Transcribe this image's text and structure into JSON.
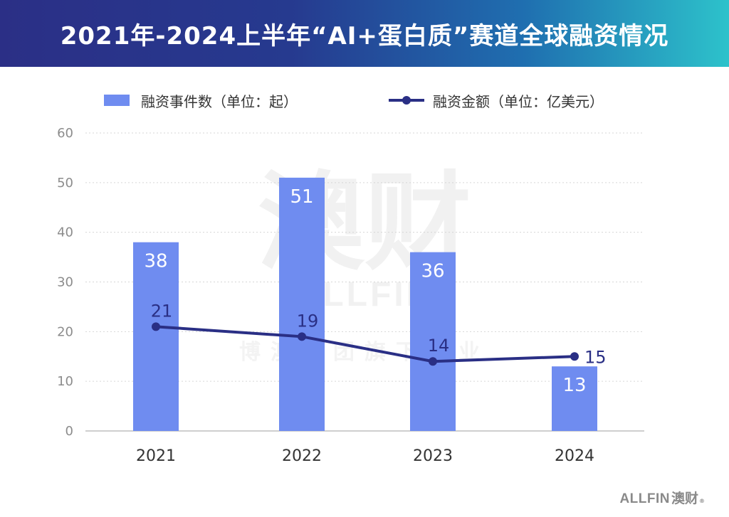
{
  "header": {
    "title": "2021年-2024上半年“AI+蛋白质”赛道全球融资情况"
  },
  "legend": {
    "bar_label": "融资事件数（单位：起）",
    "line_label": "融资金额（单位：亿美元）"
  },
  "watermark": {
    "cn": "澳财",
    "en": "ALLFIN",
    "sub": "博澳集团旗下企业"
  },
  "footer": {
    "logo_en": "ALLFIN",
    "logo_cn": "澳财",
    "logo_mark": "®"
  },
  "colors": {
    "bar": "#6f8cf0",
    "line": "#2a2f85",
    "header_start": "#2b2f86",
    "header_end": "#2dc2cb"
  },
  "chart_data": {
    "type": "bar",
    "categories": [
      "2021",
      "2022",
      "2023",
      "2024"
    ],
    "series": [
      {
        "name": "融资事件数（单位：起）",
        "type": "bar",
        "values": [
          38,
          51,
          36,
          13
        ]
      },
      {
        "name": "融资金额（单位：亿美元）",
        "type": "line",
        "values": [
          21,
          19,
          14,
          15
        ]
      }
    ],
    "ylim": [
      0,
      60
    ],
    "yticks": [
      0,
      10,
      20,
      30,
      40,
      50,
      60
    ],
    "grid": true,
    "legend_position": "top"
  }
}
